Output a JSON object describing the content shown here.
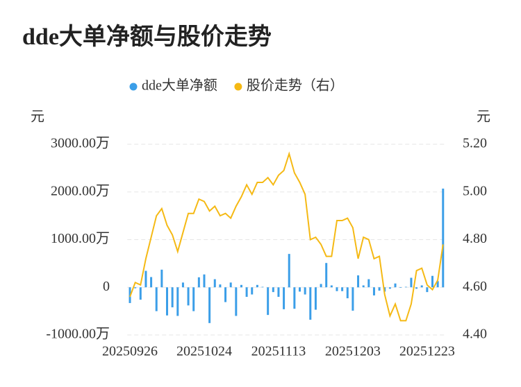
{
  "chart_data": {
    "type": "bar-line",
    "title": "dde大单净额与股价走势",
    "y_label": "元",
    "y2_label": "元",
    "categories": [
      "20250926",
      null,
      null,
      null,
      null,
      null,
      null,
      null,
      null,
      null,
      null,
      null,
      null,
      null,
      "20251024",
      null,
      null,
      null,
      null,
      null,
      null,
      null,
      null,
      null,
      null,
      null,
      null,
      null,
      "20251113",
      null,
      null,
      null,
      null,
      null,
      null,
      null,
      null,
      null,
      null,
      null,
      null,
      null,
      "20251203",
      null,
      null,
      null,
      null,
      null,
      null,
      null,
      null,
      null,
      null,
      null,
      null,
      null,
      "20251223",
      null,
      null,
      null
    ],
    "series": [
      {
        "name": "dde大单净额",
        "type": "bar",
        "color": "#3b9ee8",
        "values": [
          -330,
          -20,
          -260,
          345,
          215,
          -500,
          370,
          -590,
          -420,
          -600,
          100,
          -380,
          -500,
          210,
          270,
          -750,
          170,
          60,
          -310,
          100,
          -600,
          50,
          -200,
          -150,
          50,
          10,
          -580,
          -100,
          -200,
          -460,
          700,
          -450,
          -90,
          -150,
          -680,
          -470,
          70,
          510,
          40,
          -80,
          -80,
          -230,
          -490,
          250,
          40,
          170,
          -170,
          -70,
          -90,
          -30,
          80,
          -10,
          10,
          200,
          -30,
          40,
          -100,
          240,
          130,
          2070
        ]
      },
      {
        "name": "股价走势（右）",
        "type": "line",
        "axis": "y2",
        "color": "#f5b914",
        "values": [
          4.56,
          4.62,
          4.61,
          4.72,
          4.81,
          4.9,
          4.93,
          4.86,
          4.82,
          4.75,
          4.83,
          4.91,
          4.91,
          4.97,
          4.96,
          4.92,
          4.94,
          4.9,
          4.91,
          4.89,
          4.94,
          4.98,
          5.03,
          4.99,
          5.04,
          5.04,
          5.06,
          5.03,
          5.07,
          5.09,
          5.16,
          5.08,
          5.04,
          4.99,
          4.8,
          4.81,
          4.78,
          4.73,
          4.73,
          4.88,
          4.88,
          4.89,
          4.85,
          4.72,
          4.81,
          4.8,
          4.72,
          4.73,
          4.57,
          4.48,
          4.53,
          4.46,
          4.46,
          4.53,
          4.67,
          4.68,
          4.61,
          4.59,
          4.63,
          4.78
        ]
      }
    ],
    "ylim": [
      -1000,
      3000
    ],
    "yticks": [
      {
        "value": -1000,
        "label": "-1000.00万"
      },
      0,
      {
        "value": 1000,
        "label": "1000.00万"
      },
      {
        "value": 2000,
        "label": "2000.00万"
      },
      {
        "value": 3000,
        "label": "3000.00万"
      }
    ],
    "y2lim": [
      4.4,
      5.2
    ],
    "y2ticks": [
      {
        "value": 4.4,
        "label": "4.40"
      },
      {
        "value": 4.6,
        "label": "4.60"
      },
      {
        "value": 4.8,
        "label": "4.80"
      },
      {
        "value": 5.0,
        "label": "5.00"
      },
      {
        "value": 5.2,
        "label": "5.20"
      }
    ],
    "grid": true,
    "legend": "top"
  }
}
